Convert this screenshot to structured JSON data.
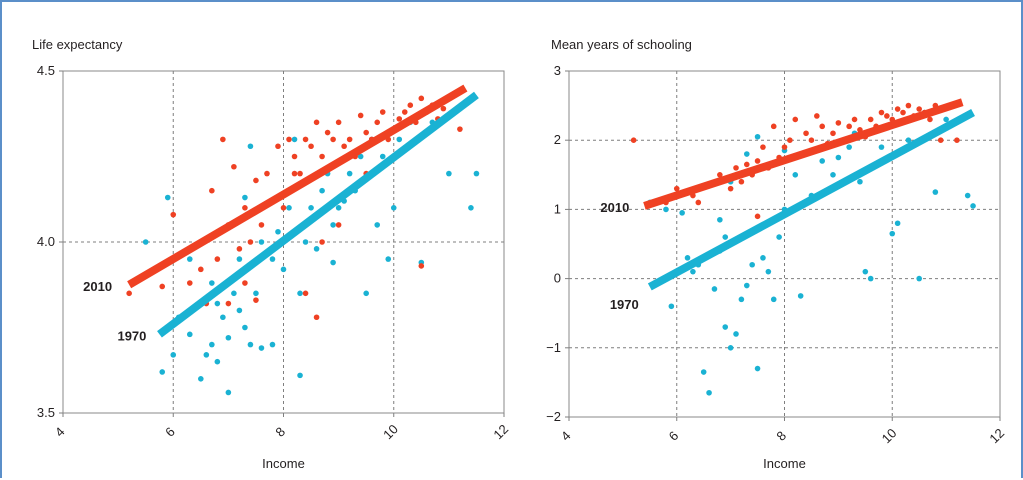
{
  "chart_data": [
    {
      "type": "scatter",
      "title": "Life expectancy",
      "xlabel": "Income",
      "ylabel": "",
      "xlim": [
        4,
        12
      ],
      "ylim": [
        3.5,
        4.5
      ],
      "xticks": [
        "4",
        "6",
        "8",
        "10",
        "12"
      ],
      "yticks": [
        "3.5",
        "4.0",
        "4.5"
      ],
      "grid": true,
      "colors": {
        "1970": "#1ab2d3",
        "2010": "#ef4123"
      },
      "trend_lines": [
        {
          "label": "2010",
          "color": "#ef4123",
          "x": [
            5.2,
            11.3
          ],
          "y": [
            3.875,
            4.45
          ]
        },
        {
          "label": "1970",
          "color": "#1ab2d3",
          "x": [
            5.75,
            11.5
          ],
          "y": [
            3.73,
            4.43
          ]
        }
      ],
      "series": [
        {
          "name": "1970",
          "color": "#1ab2d3",
          "points": [
            [
              5.5,
              4.0
            ],
            [
              5.8,
              3.62
            ],
            [
              5.9,
              4.13
            ],
            [
              6.0,
              3.67
            ],
            [
              6.1,
              3.78
            ],
            [
              6.3,
              3.73
            ],
            [
              6.5,
              3.6
            ],
            [
              6.6,
              3.67
            ],
            [
              6.7,
              3.7
            ],
            [
              6.8,
              3.65
            ],
            [
              6.8,
              3.82
            ],
            [
              6.9,
              3.78
            ],
            [
              7.0,
              3.56
            ],
            [
              7.0,
              3.72
            ],
            [
              7.1,
              3.85
            ],
            [
              7.2,
              3.8
            ],
            [
              7.3,
              3.75
            ],
            [
              7.4,
              3.7
            ],
            [
              7.5,
              3.85
            ],
            [
              7.6,
              3.69
            ],
            [
              7.2,
              3.95
            ],
            [
              7.3,
              4.13
            ],
            [
              7.6,
              4.0
            ],
            [
              7.8,
              3.95
            ],
            [
              7.9,
              4.03
            ],
            [
              8.0,
              3.92
            ],
            [
              8.1,
              4.1
            ],
            [
              8.2,
              4.3
            ],
            [
              8.3,
              3.85
            ],
            [
              8.4,
              4.0
            ],
            [
              8.5,
              4.1
            ],
            [
              8.6,
              3.98
            ],
            [
              8.7,
              4.15
            ],
            [
              8.8,
              4.2
            ],
            [
              8.9,
              4.05
            ],
            [
              9.0,
              4.1
            ],
            [
              9.2,
              4.2
            ],
            [
              9.3,
              4.15
            ],
            [
              9.4,
              4.25
            ],
            [
              9.5,
              3.85
            ],
            [
              9.6,
              4.3
            ],
            [
              9.8,
              4.25
            ],
            [
              9.9,
              3.95
            ],
            [
              10.0,
              4.1
            ],
            [
              10.1,
              4.3
            ],
            [
              10.3,
              4.35
            ],
            [
              10.5,
              3.94
            ],
            [
              10.7,
              4.35
            ],
            [
              10.8,
              4.4
            ],
            [
              11.0,
              4.2
            ],
            [
              11.4,
              4.1
            ],
            [
              11.5,
              4.2
            ],
            [
              7.4,
              4.28
            ],
            [
              6.7,
              3.88
            ],
            [
              7.8,
              3.7
            ],
            [
              8.3,
              3.61
            ],
            [
              9.7,
              4.05
            ],
            [
              6.3,
              3.95
            ],
            [
              8.9,
              3.94
            ],
            [
              9.1,
              4.12
            ]
          ]
        },
        {
          "name": "2010",
          "color": "#ef4123",
          "points": [
            [
              5.2,
              3.85
            ],
            [
              5.8,
              3.87
            ],
            [
              6.0,
              4.08
            ],
            [
              6.3,
              3.88
            ],
            [
              6.5,
              3.92
            ],
            [
              6.7,
              4.15
            ],
            [
              6.8,
              3.95
            ],
            [
              7.0,
              4.05
            ],
            [
              7.1,
              4.22
            ],
            [
              7.2,
              3.98
            ],
            [
              7.3,
              4.1
            ],
            [
              7.4,
              4.0
            ],
            [
              7.5,
              4.18
            ],
            [
              7.6,
              4.05
            ],
            [
              7.7,
              4.2
            ],
            [
              7.8,
              4.12
            ],
            [
              7.9,
              4.28
            ],
            [
              8.0,
              4.1
            ],
            [
              8.1,
              4.3
            ],
            [
              8.2,
              4.25
            ],
            [
              8.3,
              4.2
            ],
            [
              8.4,
              4.3
            ],
            [
              8.5,
              4.28
            ],
            [
              8.6,
              4.35
            ],
            [
              8.7,
              4.25
            ],
            [
              8.8,
              4.32
            ],
            [
              8.9,
              4.3
            ],
            [
              9.0,
              4.35
            ],
            [
              9.1,
              4.28
            ],
            [
              9.2,
              4.3
            ],
            [
              9.3,
              4.25
            ],
            [
              9.4,
              4.37
            ],
            [
              9.5,
              4.32
            ],
            [
              9.6,
              4.3
            ],
            [
              9.7,
              4.35
            ],
            [
              9.8,
              4.38
            ],
            [
              9.9,
              4.3
            ],
            [
              10.0,
              4.33
            ],
            [
              10.1,
              4.36
            ],
            [
              10.2,
              4.38
            ],
            [
              10.3,
              4.4
            ],
            [
              10.4,
              4.35
            ],
            [
              10.5,
              4.42
            ],
            [
              10.6,
              4.38
            ],
            [
              10.7,
              4.4
            ],
            [
              10.8,
              4.36
            ],
            [
              10.9,
              4.39
            ],
            [
              11.2,
              4.33
            ],
            [
              10.5,
              3.93
            ],
            [
              8.4,
              3.85
            ],
            [
              8.6,
              3.78
            ],
            [
              7.5,
              3.83
            ],
            [
              6.6,
              3.82
            ],
            [
              7.0,
              3.82
            ],
            [
              8.7,
              4.0
            ],
            [
              9.0,
              4.05
            ],
            [
              7.3,
              3.88
            ],
            [
              6.9,
              4.3
            ],
            [
              8.2,
              4.2
            ],
            [
              9.5,
              4.2
            ]
          ]
        }
      ]
    },
    {
      "type": "scatter",
      "title": "Mean years of schooling",
      "xlabel": "Income",
      "ylabel": "",
      "xlim": [
        4,
        12
      ],
      "ylim": [
        -2,
        3
      ],
      "xticks": [
        "4",
        "6",
        "8",
        "10",
        "12"
      ],
      "yticks": [
        "−2",
        "−1",
        "0",
        "1",
        "2",
        "3"
      ],
      "grid": true,
      "colors": {
        "1970": "#1ab2d3",
        "2010": "#ef4123"
      },
      "trend_lines": [
        {
          "label": "2010",
          "color": "#ef4123",
          "x": [
            5.4,
            11.3
          ],
          "y": [
            1.05,
            2.55
          ]
        },
        {
          "label": "1970",
          "color": "#1ab2d3",
          "x": [
            5.5,
            11.5
          ],
          "y": [
            -0.12,
            2.4
          ]
        }
      ],
      "series": [
        {
          "name": "1970",
          "color": "#1ab2d3",
          "points": [
            [
              5.5,
              1.1
            ],
            [
              5.8,
              1.0
            ],
            [
              5.9,
              -0.4
            ],
            [
              6.1,
              0.95
            ],
            [
              6.2,
              0.3
            ],
            [
              6.3,
              0.1
            ],
            [
              6.4,
              0.2
            ],
            [
              6.5,
              -1.35
            ],
            [
              6.6,
              -1.65
            ],
            [
              6.7,
              -0.15
            ],
            [
              6.8,
              0.4
            ],
            [
              6.9,
              -0.7
            ],
            [
              7.0,
              -1.0
            ],
            [
              7.1,
              -0.8
            ],
            [
              7.2,
              -0.3
            ],
            [
              7.3,
              -0.1
            ],
            [
              7.4,
              0.2
            ],
            [
              7.5,
              -1.3
            ],
            [
              7.6,
              0.3
            ],
            [
              7.7,
              0.1
            ],
            [
              7.8,
              -0.3
            ],
            [
              7.9,
              0.6
            ],
            [
              8.0,
              1.0
            ],
            [
              8.2,
              1.5
            ],
            [
              8.3,
              -0.25
            ],
            [
              8.5,
              1.2
            ],
            [
              8.7,
              1.7
            ],
            [
              8.9,
              1.5
            ],
            [
              9.0,
              1.75
            ],
            [
              9.2,
              1.9
            ],
            [
              9.4,
              1.4
            ],
            [
              9.5,
              0.1
            ],
            [
              9.6,
              0.0
            ],
            [
              9.8,
              1.9
            ],
            [
              10.0,
              0.65
            ],
            [
              10.1,
              0.8
            ],
            [
              10.3,
              2.0
            ],
            [
              10.5,
              0.0
            ],
            [
              10.8,
              1.25
            ],
            [
              11.0,
              2.3
            ],
            [
              11.4,
              1.2
            ],
            [
              11.5,
              1.05
            ],
            [
              7.3,
              1.8
            ],
            [
              7.0,
              1.4
            ],
            [
              7.5,
              2.05
            ],
            [
              6.8,
              0.85
            ],
            [
              8.0,
              1.85
            ],
            [
              9.3,
              2.1
            ],
            [
              10.6,
              2.4
            ],
            [
              6.9,
              0.6
            ]
          ]
        },
        {
          "name": "2010",
          "color": "#ef4123",
          "points": [
            [
              5.2,
              2.0
            ],
            [
              5.8,
              1.1
            ],
            [
              6.0,
              1.3
            ],
            [
              6.4,
              1.1
            ],
            [
              6.6,
              1.35
            ],
            [
              6.8,
              1.5
            ],
            [
              7.0,
              1.3
            ],
            [
              7.1,
              1.6
            ],
            [
              7.2,
              1.4
            ],
            [
              7.3,
              1.65
            ],
            [
              7.4,
              1.5
            ],
            [
              7.5,
              1.7
            ],
            [
              7.6,
              1.9
            ],
            [
              7.7,
              1.6
            ],
            [
              7.8,
              2.2
            ],
            [
              7.9,
              1.75
            ],
            [
              8.0,
              1.9
            ],
            [
              8.1,
              2.0
            ],
            [
              8.2,
              2.3
            ],
            [
              8.3,
              1.8
            ],
            [
              8.4,
              2.1
            ],
            [
              8.5,
              2.0
            ],
            [
              8.6,
              2.35
            ],
            [
              8.7,
              2.2
            ],
            [
              8.8,
              1.95
            ],
            [
              8.9,
              2.1
            ],
            [
              9.0,
              2.25
            ],
            [
              9.1,
              2.0
            ],
            [
              9.2,
              2.2
            ],
            [
              9.3,
              2.3
            ],
            [
              9.4,
              2.15
            ],
            [
              9.5,
              2.05
            ],
            [
              9.6,
              2.3
            ],
            [
              9.7,
              2.2
            ],
            [
              9.8,
              2.4
            ],
            [
              9.9,
              2.35
            ],
            [
              10.0,
              2.3
            ],
            [
              10.1,
              2.45
            ],
            [
              10.2,
              2.4
            ],
            [
              10.3,
              2.5
            ],
            [
              10.4,
              2.35
            ],
            [
              10.5,
              2.45
            ],
            [
              10.6,
              2.4
            ],
            [
              10.7,
              2.3
            ],
            [
              10.8,
              2.5
            ],
            [
              10.9,
              2.0
            ],
            [
              11.0,
              2.2
            ],
            [
              11.2,
              2.0
            ],
            [
              6.3,
              1.2
            ],
            [
              7.5,
              0.9
            ]
          ]
        }
      ]
    }
  ]
}
